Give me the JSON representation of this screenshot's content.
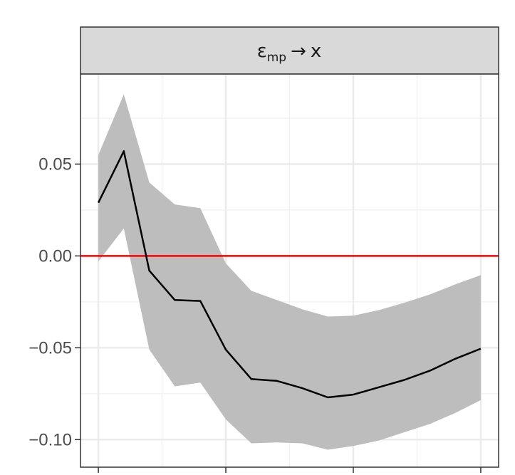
{
  "chart_data": {
    "type": "line",
    "panel_label": {
      "symbol": "ε",
      "subscript": "mp",
      "arrow": "→",
      "target": "x"
    },
    "x": [
      0,
      1,
      2,
      3,
      4,
      5,
      6,
      7,
      8,
      9,
      10,
      11,
      12,
      13,
      14,
      15
    ],
    "series": [
      {
        "values": [
          0.029,
          0.057,
          -0.008,
          -0.024,
          -0.0245,
          -0.051,
          -0.067,
          -0.068,
          -0.072,
          -0.077,
          -0.0755,
          -0.0715,
          -0.0675,
          -0.0625,
          -0.056,
          -0.0505
        ],
        "lower": [
          -0.003,
          0.015,
          -0.051,
          -0.071,
          -0.069,
          -0.089,
          -0.102,
          -0.1015,
          -0.102,
          -0.1055,
          -0.1035,
          -0.1005,
          -0.096,
          -0.0915,
          -0.0855,
          -0.0785
        ],
        "upper": [
          0.055,
          0.088,
          0.04,
          0.028,
          0.026,
          -0.004,
          -0.019,
          -0.024,
          -0.029,
          -0.033,
          -0.0325,
          -0.0295,
          -0.0255,
          -0.021,
          -0.0155,
          -0.0105
        ],
        "color": "#000000",
        "band_color": "#bdbdbd"
      }
    ],
    "reference_line": {
      "y": 0.0,
      "color": "#ff0000"
    },
    "y_ticks": [
      0.05,
      0.0,
      -0.05,
      -0.1
    ],
    "y_tick_labels": [
      "0.05",
      "0.00",
      "−0.05",
      "−0.10"
    ],
    "ylim": [
      -0.115,
      0.099
    ],
    "xlim": [
      -0.7,
      15.7
    ],
    "grid": true,
    "panel_strip_color": "#d9d9d9"
  }
}
